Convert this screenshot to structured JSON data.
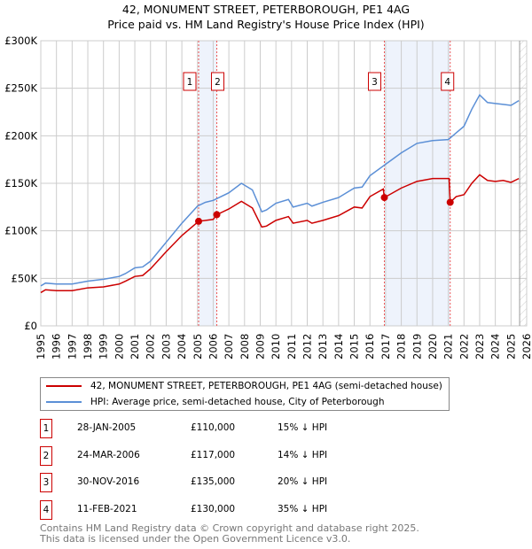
{
  "title": "42, MONUMENT STREET, PETERBOROUGH, PE1 4AG",
  "subtitle": "Price paid vs. HM Land Registry's House Price Index (HPI)",
  "chart_data": {
    "type": "line",
    "ylim": [
      0,
      300000
    ],
    "xlim": [
      1995,
      2026
    ],
    "yticks": [
      {
        "v": 0,
        "label": "£0"
      },
      {
        "v": 50000,
        "label": "£50K"
      },
      {
        "v": 100000,
        "label": "£100K"
      },
      {
        "v": 150000,
        "label": "£150K"
      },
      {
        "v": 200000,
        "label": "£200K"
      },
      {
        "v": 250000,
        "label": "£250K"
      },
      {
        "v": 300000,
        "label": "£300K"
      }
    ],
    "xticks": [
      "1995",
      "1996",
      "1997",
      "1998",
      "1999",
      "2000",
      "2001",
      "2002",
      "2003",
      "2004",
      "2005",
      "2006",
      "2007",
      "2008",
      "2009",
      "2010",
      "2011",
      "2012",
      "2013",
      "2014",
      "2015",
      "2016",
      "2017",
      "2018",
      "2019",
      "2020",
      "2021",
      "2022",
      "2023",
      "2024",
      "2025",
      "2026"
    ],
    "series": [
      {
        "name": "42, MONUMENT STREET, PETERBOROUGH, PE1 4AG (semi-detached house)",
        "color": "#cc0000",
        "x": [
          1995,
          1995.3,
          1996,
          1997,
          1998,
          1999,
          2000,
          2000.4,
          2001,
          2001.5,
          2002,
          2003,
          2004,
          2005.07,
          2006,
          2006.23,
          2007,
          2007.8,
          2008.5,
          2009.1,
          2009.4,
          2010,
          2010.8,
          2011.1,
          2012,
          2012.3,
          2013,
          2014,
          2015,
          2015.5,
          2016,
          2016.85,
          2016.92,
          2018,
          2019,
          2020,
          2021.05,
          2021.12,
          2021.5,
          2022,
          2022.5,
          2023,
          2023.5,
          2024,
          2024.5,
          2025,
          2025.5
        ],
        "y": [
          35000,
          38000,
          37000,
          37000,
          40000,
          41000,
          44000,
          47000,
          52000,
          53000,
          60000,
          78000,
          95000,
          110000,
          112000,
          117000,
          123000,
          131000,
          124000,
          104000,
          105000,
          111000,
          115000,
          108000,
          111000,
          108000,
          111000,
          116000,
          125000,
          124000,
          136000,
          144000,
          135000,
          145000,
          152000,
          155000,
          155000,
          130000,
          136000,
          138000,
          150000,
          159000,
          153000,
          152000,
          153000,
          151000,
          155000
        ]
      },
      {
        "name": "HPI: Average price, semi-detached house, City of Peterborough",
        "color": "#5b8fd6",
        "x": [
          1995,
          1995.3,
          1996,
          1997,
          1998,
          1999,
          2000,
          2000.4,
          2001,
          2001.5,
          2002,
          2003,
          2004,
          2005,
          2005.5,
          2006,
          2007,
          2007.8,
          2008.5,
          2009.1,
          2009.4,
          2010,
          2010.8,
          2011.1,
          2012,
          2012.3,
          2013,
          2014,
          2015,
          2015.5,
          2016,
          2017,
          2018,
          2019,
          2020,
          2021,
          2021.5,
          2022,
          2022.5,
          2023,
          2023.5,
          2024,
          2024.5,
          2025,
          2025.5
        ],
        "y": [
          42000,
          45000,
          44000,
          44000,
          47000,
          49000,
          52000,
          55000,
          61000,
          62000,
          68000,
          88000,
          108000,
          126000,
          130000,
          132000,
          140000,
          150000,
          143000,
          120000,
          122000,
          129000,
          133000,
          125000,
          129000,
          126000,
          130000,
          135000,
          145000,
          146000,
          158000,
          170000,
          182000,
          192000,
          195000,
          196000,
          203000,
          210000,
          228000,
          243000,
          235000,
          234000,
          233000,
          232000,
          237000
        ]
      }
    ],
    "sales": [
      {
        "n": "1",
        "x": 2005.07,
        "y": 110000,
        "date": "28-JAN-2005",
        "price": "£110,000",
        "hpi": "15% ↓ HPI"
      },
      {
        "n": "2",
        "x": 2006.23,
        "y": 117000,
        "date": "24-MAR-2006",
        "price": "£117,000",
        "hpi": "14% ↓ HPI"
      },
      {
        "n": "3",
        "x": 2016.92,
        "y": 135000,
        "date": "30-NOV-2016",
        "price": "£135,000",
        "hpi": "20% ↓ HPI"
      },
      {
        "n": "4",
        "x": 2021.12,
        "y": 130000,
        "date": "11-FEB-2021",
        "price": "£130,000",
        "hpi": "35% ↓ HPI"
      }
    ],
    "shaded": [
      [
        2005.07,
        2006.23
      ],
      [
        2016.92,
        2021.12
      ]
    ],
    "forecast_from": 2025.55
  },
  "legend": {
    "red": "42, MONUMENT STREET, PETERBOROUGH, PE1 4AG (semi-detached house)",
    "blue": "HPI: Average price, semi-detached house, City of Peterborough"
  },
  "footer": {
    "line1": "Contains HM Land Registry data © Crown copyright and database right 2025.",
    "line2": "This data is licensed under the Open Government Licence v3.0."
  }
}
